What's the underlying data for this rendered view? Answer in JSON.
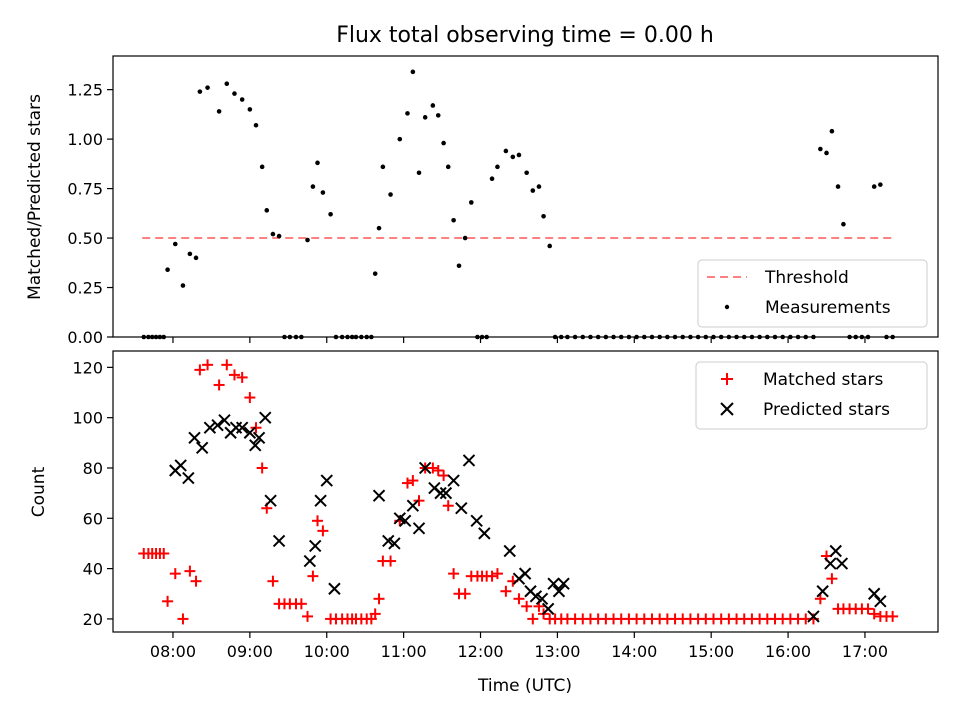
{
  "chart_data": [
    {
      "type": "scatter",
      "title": "Flux total observing time = 0.00 h",
      "xlabel": "",
      "ylabel": "Matched/Predicted stars",
      "ylim": [
        0,
        1.42
      ],
      "y_ticks": [
        "0.00",
        "0.25",
        "0.50",
        "0.75",
        "1.00",
        "1.25"
      ],
      "y_tick_values": [
        0,
        0.25,
        0.5,
        0.75,
        1.0,
        1.25
      ],
      "xlim": [
        7.22,
        17.95
      ],
      "legend_placement": "lower right",
      "threshold": {
        "name": "Threshold",
        "y": 0.5,
        "x_start": 7.6,
        "x_end": 17.35,
        "color": "#ff8080"
      },
      "series": [
        {
          "name": "Measurements",
          "color": "#000000",
          "x": [
            7.62,
            7.68,
            7.73,
            7.78,
            7.83,
            7.88,
            7.93,
            8.03,
            8.13,
            8.22,
            8.3,
            8.35,
            8.45,
            8.6,
            8.7,
            8.8,
            8.9,
            9.0,
            9.08,
            9.16,
            9.22,
            9.3,
            9.38,
            9.45,
            9.52,
            9.6,
            9.67,
            9.75,
            9.82,
            9.88,
            9.95,
            10.05,
            10.12,
            10.2,
            10.27,
            10.33,
            10.38,
            10.45,
            10.52,
            10.58,
            10.63,
            10.68,
            10.73,
            10.83,
            10.95,
            11.05,
            11.12,
            11.2,
            11.28,
            11.38,
            11.45,
            11.52,
            11.58,
            11.65,
            11.72,
            11.8,
            11.88,
            11.96,
            12.02,
            12.08,
            12.15,
            12.22,
            12.33,
            12.42,
            12.5,
            12.6,
            12.68,
            12.76,
            12.82,
            12.9,
            12.97,
            13.05,
            13.13,
            13.23,
            13.33,
            13.43,
            13.53,
            13.63,
            13.73,
            13.83,
            13.93,
            14.03,
            14.13,
            14.23,
            14.33,
            14.43,
            14.53,
            14.63,
            14.73,
            14.83,
            14.93,
            15.03,
            15.13,
            15.23,
            15.33,
            15.43,
            15.53,
            15.63,
            15.73,
            15.83,
            15.93,
            16.03,
            16.13,
            16.23,
            16.33,
            16.42,
            16.5,
            16.57,
            16.65,
            16.72,
            16.8,
            16.88,
            16.96,
            17.04,
            17.12,
            17.2,
            17.28,
            17.36
          ],
          "y": [
            0,
            0,
            0,
            0,
            0,
            0,
            0.34,
            0.47,
            0.26,
            0.42,
            0.4,
            1.24,
            1.26,
            1.14,
            1.28,
            1.23,
            1.2,
            1.15,
            1.07,
            0.86,
            0.64,
            0.52,
            0.51,
            0,
            0,
            0,
            0,
            0.49,
            0.76,
            0.88,
            0.73,
            0.62,
            0,
            0,
            0,
            0,
            0,
            0,
            0,
            0,
            0.32,
            0.55,
            0.86,
            0.72,
            1.0,
            1.13,
            1.34,
            0.83,
            1.11,
            1.17,
            1.12,
            0.98,
            0.86,
            0.59,
            0.36,
            0.5,
            0.68,
            0,
            0,
            0,
            0.8,
            0.86,
            0.94,
            0.91,
            0.92,
            0.83,
            0.74,
            0.76,
            0.61,
            0.46,
            0,
            0,
            0,
            0,
            0,
            0,
            0,
            0,
            0,
            0,
            0,
            0,
            0,
            0,
            0,
            0,
            0,
            0,
            0,
            0,
            0,
            0,
            0,
            0,
            0,
            0,
            0,
            0,
            0,
            0,
            0,
            0,
            0,
            0,
            0,
            0.95,
            0.93,
            1.04,
            0.76,
            0.57,
            0,
            0,
            0,
            0,
            0.76,
            0.77,
            0,
            0
          ]
        }
      ]
    },
    {
      "type": "scatter",
      "title": "",
      "xlabel": "Time (UTC)",
      "ylabel": "Count",
      "ylim": [
        14.8,
        126.5
      ],
      "y_ticks": [
        "20",
        "40",
        "60",
        "80",
        "100",
        "120"
      ],
      "y_tick_values": [
        20,
        40,
        60,
        80,
        100,
        120
      ],
      "xlim": [
        7.22,
        17.95
      ],
      "x_ticks": [
        "08:00",
        "09:00",
        "10:00",
        "11:00",
        "12:00",
        "13:00",
        "14:00",
        "15:00",
        "16:00",
        "17:00"
      ],
      "x_tick_values": [
        8,
        9,
        10,
        11,
        12,
        13,
        14,
        15,
        16,
        17
      ],
      "legend_placement": "upper right",
      "series": [
        {
          "name": "Matched stars",
          "marker": "plus",
          "color": "#ff0000",
          "x": [
            7.62,
            7.68,
            7.73,
            7.78,
            7.83,
            7.88,
            7.93,
            8.03,
            8.13,
            8.22,
            8.3,
            8.35,
            8.45,
            8.6,
            8.7,
            8.8,
            8.9,
            9.0,
            9.08,
            9.16,
            9.22,
            9.3,
            9.38,
            9.45,
            9.52,
            9.6,
            9.67,
            9.75,
            9.82,
            9.88,
            9.95,
            10.05,
            10.12,
            10.2,
            10.27,
            10.33,
            10.38,
            10.45,
            10.52,
            10.58,
            10.63,
            10.68,
            10.73,
            10.83,
            10.95,
            11.05,
            11.12,
            11.2,
            11.28,
            11.38,
            11.45,
            11.52,
            11.58,
            11.65,
            11.72,
            11.8,
            11.88,
            11.96,
            12.02,
            12.08,
            12.15,
            12.22,
            12.33,
            12.42,
            12.5,
            12.6,
            12.68,
            12.76,
            12.82,
            12.9,
            12.97,
            13.05,
            13.13,
            13.23,
            13.33,
            13.43,
            13.53,
            13.63,
            13.73,
            13.83,
            13.93,
            14.03,
            14.13,
            14.23,
            14.33,
            14.43,
            14.53,
            14.63,
            14.73,
            14.83,
            14.93,
            15.03,
            15.13,
            15.23,
            15.33,
            15.43,
            15.53,
            15.63,
            15.73,
            15.83,
            15.93,
            16.03,
            16.13,
            16.23,
            16.33,
            16.42,
            16.5,
            16.57,
            16.65,
            16.72,
            16.8,
            16.88,
            16.96,
            17.04,
            17.12,
            17.2,
            17.28,
            17.36
          ],
          "y": [
            46,
            46,
            46,
            46,
            46,
            46,
            27,
            38,
            20,
            39,
            35,
            119,
            121,
            113,
            121,
            117,
            116,
            108,
            96,
            80,
            64,
            35,
            26,
            26,
            26,
            26,
            26,
            21,
            37,
            59,
            55,
            20,
            20,
            20,
            20,
            20,
            20,
            20,
            20,
            20,
            22,
            28,
            43,
            43,
            59,
            74,
            75,
            67,
            80,
            80,
            79,
            77,
            65,
            38,
            30,
            30,
            37,
            37,
            37,
            37,
            37,
            38,
            31,
            35,
            28,
            25,
            20,
            25,
            22,
            20,
            20,
            20,
            20,
            20,
            20,
            20,
            20,
            20,
            20,
            20,
            20,
            20,
            20,
            20,
            20,
            20,
            20,
            20,
            20,
            20,
            20,
            20,
            20,
            20,
            20,
            20,
            20,
            20,
            20,
            20,
            20,
            20,
            20,
            20,
            20,
            28,
            45,
            36,
            24,
            24,
            24,
            24,
            24,
            24,
            22,
            21,
            21,
            21
          ]
        },
        {
          "name": "Predicted stars",
          "marker": "x",
          "color": "#000000",
          "x": [
            8.03,
            8.1,
            8.2,
            8.28,
            8.38,
            8.48,
            8.58,
            8.67,
            8.75,
            8.82,
            8.9,
            9.0,
            9.07,
            9.12,
            9.2,
            9.27,
            9.38,
            9.78,
            9.85,
            9.92,
            10.0,
            10.1,
            10.68,
            10.8,
            10.88,
            10.95,
            11.02,
            11.12,
            11.2,
            11.28,
            11.4,
            11.48,
            11.55,
            11.65,
            11.75,
            11.85,
            11.95,
            12.05,
            12.38,
            12.5,
            12.58,
            12.65,
            12.72,
            12.8,
            12.88,
            12.95,
            13.02,
            13.08,
            16.33,
            16.45,
            16.55,
            16.62,
            16.7,
            17.12,
            17.2
          ],
          "y": [
            79,
            81,
            76,
            92,
            88,
            96,
            97,
            99,
            94,
            96,
            96,
            94,
            89,
            92,
            100,
            67,
            51,
            43,
            49,
            67,
            75,
            32,
            69,
            51,
            50,
            60,
            59,
            65,
            56,
            80,
            72,
            70,
            70,
            75,
            64,
            83,
            59,
            54,
            47,
            36,
            38,
            31,
            29,
            28,
            24,
            34,
            31,
            34,
            21,
            31,
            42,
            47,
            42,
            30,
            27
          ]
        }
      ]
    }
  ]
}
